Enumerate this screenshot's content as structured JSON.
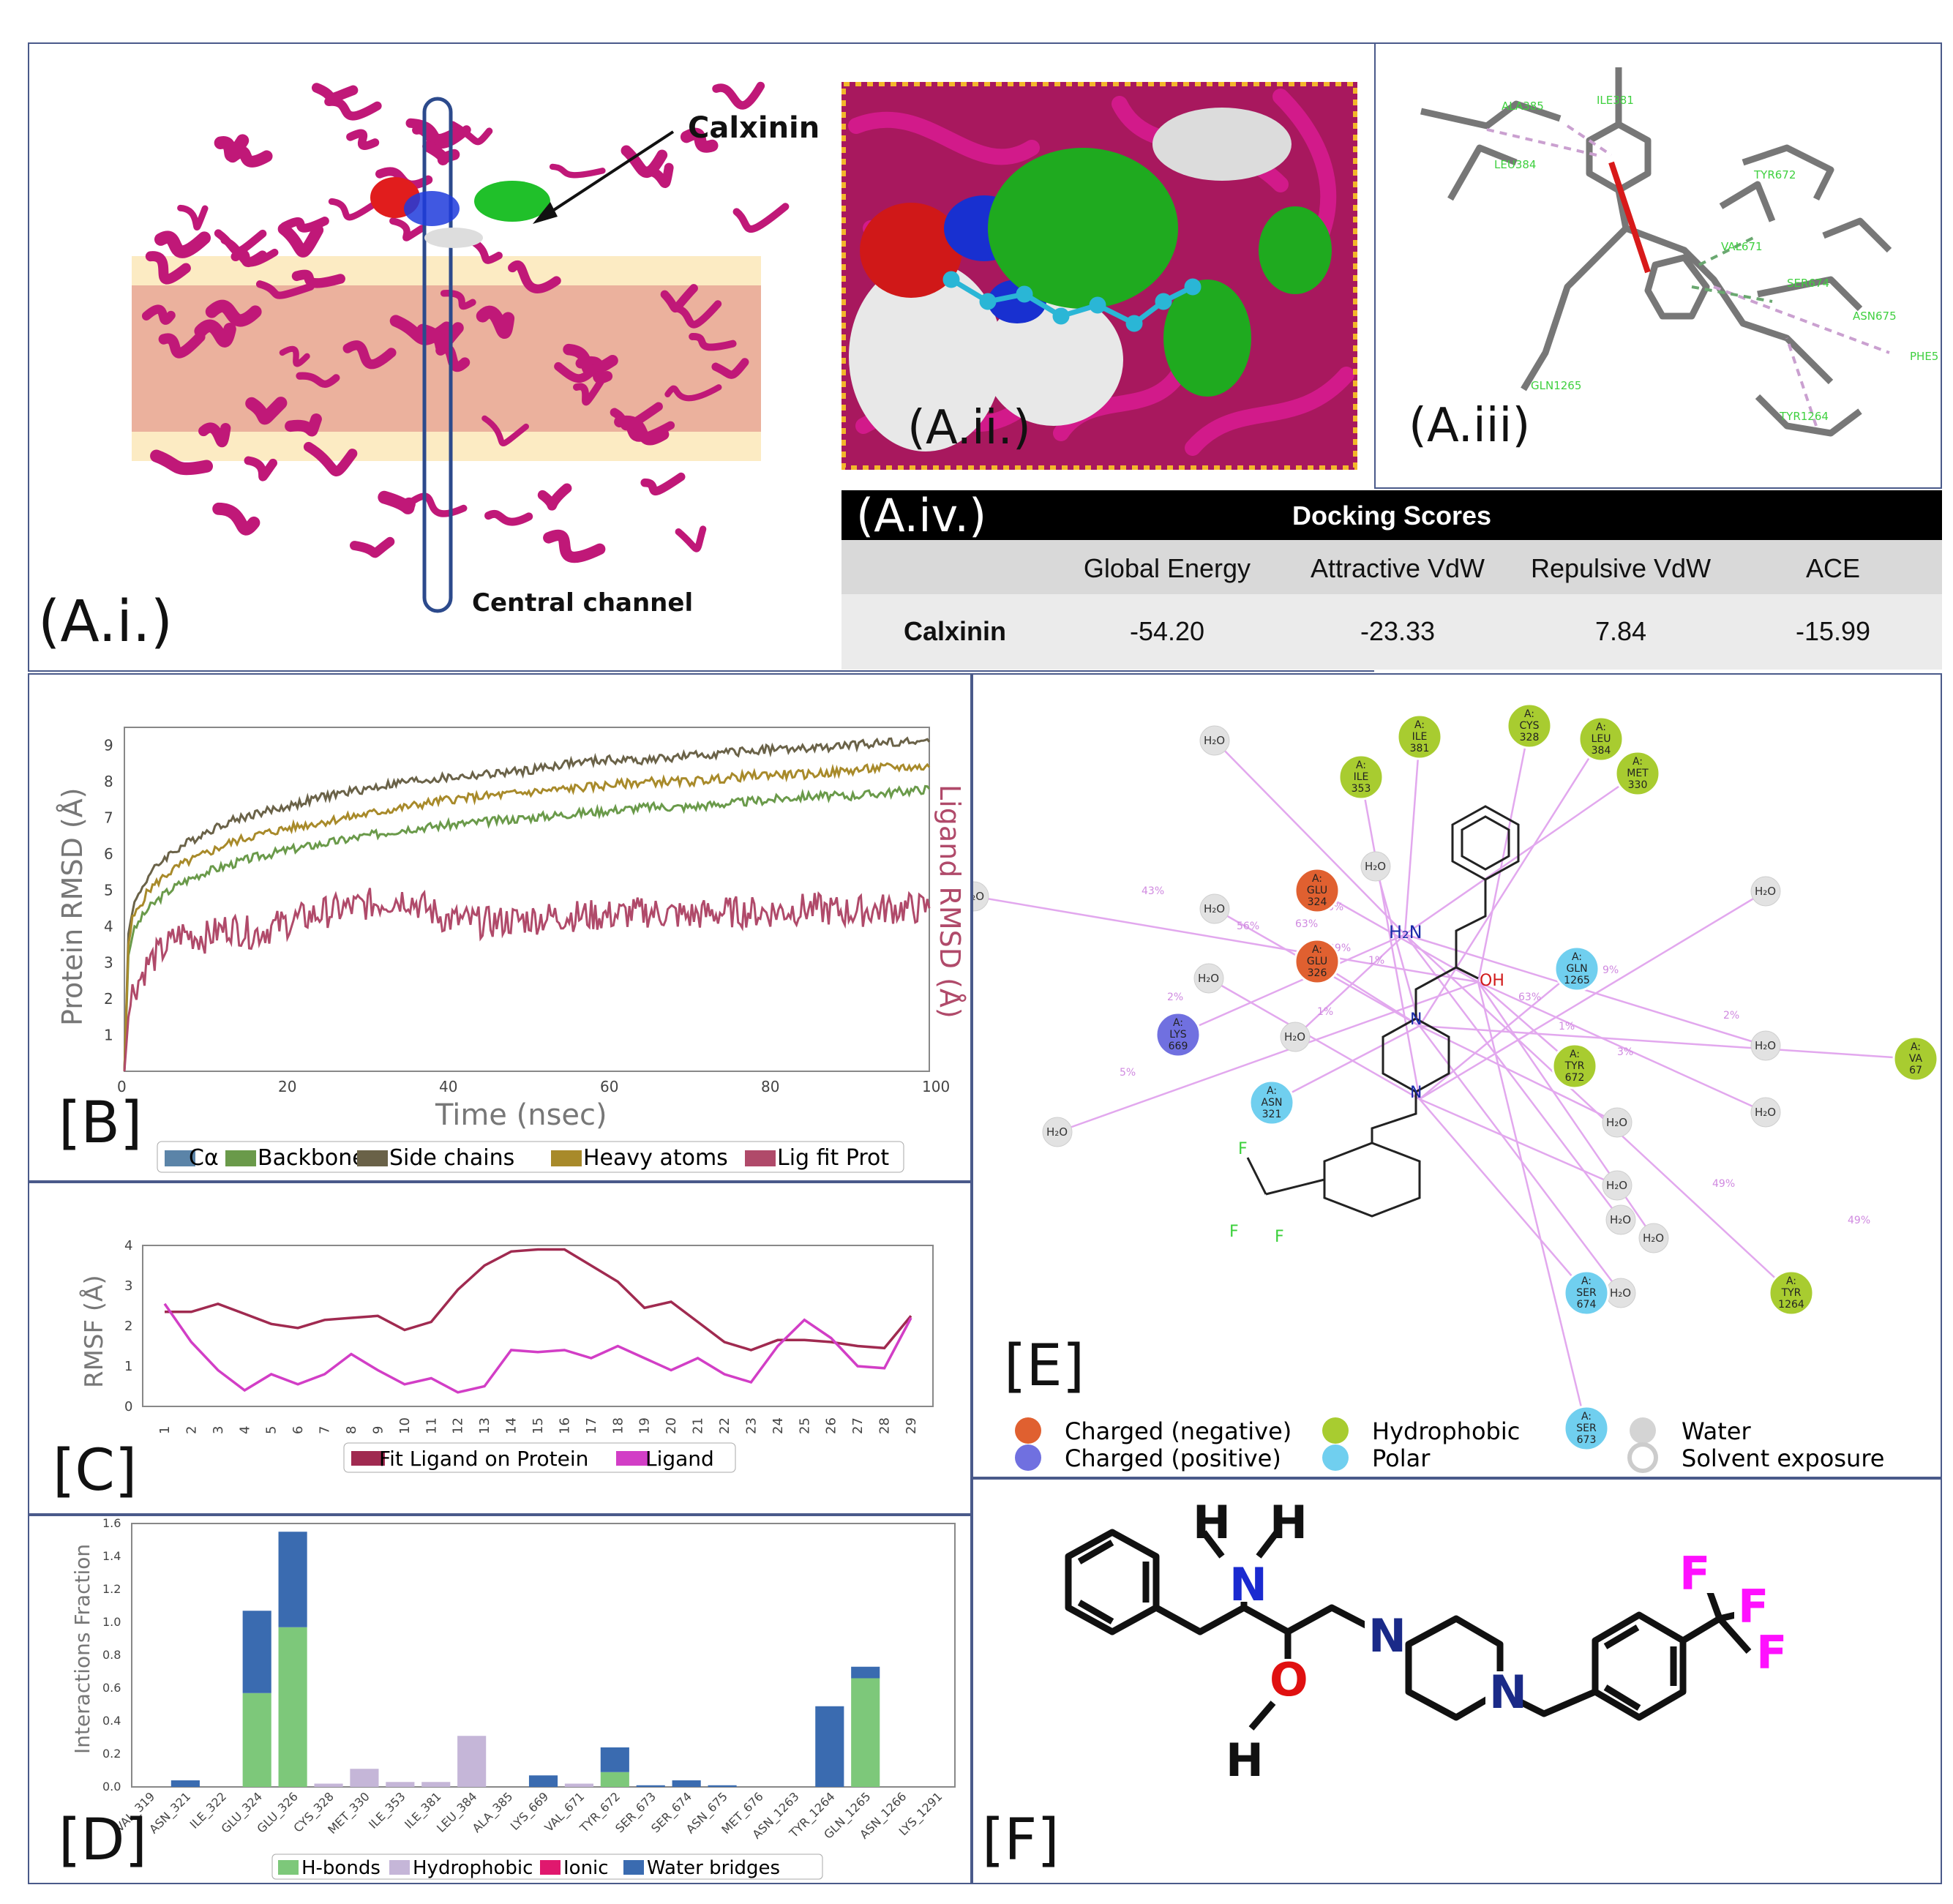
{
  "panel_a": {
    "label_i": "(A.i.)",
    "label_ii": "(A.ii.)",
    "label_iii": "(A.iii)",
    "label_iv": "(A.iv.)",
    "calxinin_label": "Calxinin",
    "channel_label": "Central channel",
    "residues_iii": [
      "ALA385",
      "ILE381",
      "LEU384",
      "TYR672",
      "VAL671",
      "SER674",
      "ASN675",
      "PHE5",
      "GLN1265",
      "TYR1264"
    ]
  },
  "docking": {
    "title": "Docking Scores",
    "headers": [
      "Global Energy",
      "Attractive VdW",
      "Repulsive VdW",
      "ACE"
    ],
    "row_name": "Calxinin",
    "values": [
      "-54.20",
      "-23.33",
      "7.84",
      "-15.99"
    ]
  },
  "panel_b": {
    "label": "[B]",
    "ylabel": "Protein RMSD (Å)",
    "y2label": "Ligand RMSD (Å)",
    "xlabel": "Time (nsec)",
    "legend": [
      "Cα",
      "Backbone",
      "Side chains",
      "Heavy atoms",
      "Lig fit Prot"
    ],
    "colors": {
      "ca": "#5b84a8",
      "backbone": "#6a9a4a",
      "side": "#6a6248",
      "heavy": "#a88a2a",
      "lig": "#b04a6a"
    }
  },
  "panel_c": {
    "label": "[C]",
    "ylabel": "RMSF (Å)",
    "legend": [
      "Fit Ligand on Protein",
      "Ligand"
    ]
  },
  "panel_d": {
    "label": "[D]",
    "ylabel": "Interactions Fraction",
    "legend": [
      "H-bonds",
      "Hydrophobic",
      "Ionic",
      "Water bridges"
    ]
  },
  "panel_e": {
    "label": "[E]",
    "legend": [
      "Charged (negative)",
      "Charged (positive)",
      "Hydrophobic",
      "Polar",
      "Water",
      "Solvent exposure"
    ],
    "h2o": "H₂O",
    "residues": [
      {
        "chain": "A:",
        "name": "ILE",
        "num": "381"
      },
      {
        "chain": "A:",
        "name": "CYS",
        "num": "328"
      },
      {
        "chain": "A:",
        "name": "LEU",
        "num": "384"
      },
      {
        "chain": "A:",
        "name": "ILE",
        "num": "353"
      },
      {
        "chain": "A:",
        "name": "MET",
        "num": "330"
      },
      {
        "chain": "A:",
        "name": "GLU",
        "num": "324"
      },
      {
        "chain": "A:",
        "name": "GLU",
        "num": "326"
      },
      {
        "chain": "A:",
        "name": "GLN",
        "num": "1265"
      },
      {
        "chain": "A:",
        "name": "LYS",
        "num": "669"
      },
      {
        "chain": "A:",
        "name": "TYR",
        "num": "672"
      },
      {
        "chain": "A:",
        "name": "ASN",
        "num": "321"
      },
      {
        "chain": "A:",
        "name": "SER",
        "num": "674"
      },
      {
        "chain": "A:",
        "name": "TYR",
        "num": "1264"
      },
      {
        "chain": "A:",
        "name": "SER",
        "num": "673"
      },
      {
        "chain": "A:",
        "name": "VA",
        "num": "67"
      }
    ],
    "percents": [
      "43%",
      "56%",
      "63%",
      "29%",
      "56%",
      "2%",
      "1%",
      "63%",
      "9%",
      "2%",
      "5%",
      "49%",
      "49%",
      "1%",
      "3%",
      "1%"
    ]
  },
  "panel_f": {
    "label": "[F]",
    "atoms": {
      "H": "H",
      "N": "N",
      "O": "O",
      "F": "F"
    }
  },
  "chart_data": [
    {
      "type": "line",
      "title": "",
      "xlabel": "Time (nsec)",
      "ylabel": "Protein RMSD (Å)",
      "y2label": "Ligand RMSD (Å)",
      "xlim": [
        0,
        100
      ],
      "ylim": [
        0,
        9.5
      ],
      "xticks": [
        0,
        20,
        40,
        60,
        80,
        100
      ],
      "yticks": [
        1,
        2,
        3,
        4,
        5,
        6,
        7,
        8,
        9
      ],
      "x": [
        0,
        0.5,
        1,
        2,
        3,
        5,
        7,
        10,
        13,
        16,
        20,
        25,
        30,
        35,
        40,
        45,
        50,
        55,
        60,
        65,
        70,
        75,
        80,
        85,
        90,
        95,
        100
      ],
      "series": [
        {
          "name": "Backbone",
          "values": [
            0,
            3.2,
            3.8,
            4.2,
            4.5,
            4.9,
            5.2,
            5.5,
            5.7,
            5.9,
            6.1,
            6.3,
            6.5,
            6.7,
            6.8,
            6.9,
            7.0,
            7.1,
            7.2,
            7.3,
            7.3,
            7.4,
            7.5,
            7.6,
            7.6,
            7.7,
            7.8
          ]
        },
        {
          "name": "Side chains",
          "values": [
            0,
            3.8,
            4.5,
            5.0,
            5.4,
            5.9,
            6.2,
            6.6,
            6.9,
            7.1,
            7.3,
            7.6,
            7.8,
            8.0,
            8.1,
            8.2,
            8.3,
            8.5,
            8.6,
            8.6,
            8.7,
            8.8,
            8.9,
            8.9,
            9.0,
            9.1,
            9.1
          ]
        },
        {
          "name": "Heavy atoms",
          "values": [
            0,
            3.5,
            4.2,
            4.6,
            5.0,
            5.4,
            5.7,
            6.0,
            6.3,
            6.5,
            6.7,
            6.9,
            7.1,
            7.3,
            7.5,
            7.6,
            7.7,
            7.8,
            7.9,
            8.0,
            8.0,
            8.1,
            8.2,
            8.2,
            8.3,
            8.4,
            8.4
          ]
        },
        {
          "name": "Lig fit Prot",
          "values": [
            0,
            1.5,
            2.2,
            2.6,
            3.0,
            3.4,
            3.8,
            3.7,
            4.0,
            3.8,
            4.1,
            4.4,
            4.6,
            4.8,
            4.2,
            4.1,
            4.2,
            4.3,
            4.3,
            4.4,
            4.3,
            4.4,
            4.4,
            4.5,
            4.4,
            4.5,
            4.5
          ]
        }
      ]
    },
    {
      "type": "line",
      "title": "",
      "xlabel": "",
      "ylabel": "RMSF (Å)",
      "ylim": [
        0,
        4
      ],
      "yticks": [
        0,
        1,
        2,
        3,
        4
      ],
      "categories": [
        "1",
        "2",
        "3",
        "4",
        "5",
        "6",
        "7",
        "8",
        "9",
        "10",
        "11",
        "12",
        "13",
        "14",
        "15",
        "16",
        "17",
        "18",
        "19",
        "20",
        "21",
        "22",
        "23",
        "24",
        "25",
        "26",
        "27",
        "28",
        "29"
      ],
      "series": [
        {
          "name": "Fit Ligand on Protein",
          "values": [
            2.35,
            2.35,
            2.55,
            2.3,
            2.05,
            1.95,
            2.15,
            2.2,
            2.25,
            1.9,
            2.1,
            2.9,
            3.5,
            3.85,
            3.9,
            3.9,
            3.5,
            3.1,
            2.45,
            2.6,
            2.1,
            1.6,
            1.4,
            1.65,
            1.65,
            1.6,
            1.5,
            1.45,
            2.25
          ]
        },
        {
          "name": "Ligand",
          "values": [
            2.55,
            1.6,
            0.9,
            0.4,
            0.8,
            0.55,
            0.8,
            1.3,
            0.9,
            0.55,
            0.7,
            0.35,
            0.5,
            1.4,
            1.35,
            1.4,
            1.2,
            1.5,
            1.2,
            0.9,
            1.2,
            0.8,
            0.6,
            1.5,
            2.15,
            1.7,
            1.0,
            0.95,
            2.2
          ]
        }
      ]
    },
    {
      "type": "bar",
      "title": "",
      "xlabel": "",
      "ylabel": "Interactions Fraction",
      "ylim": [
        0,
        1.6
      ],
      "yticks": [
        0.0,
        0.2,
        0.4,
        0.6,
        0.8,
        1.0,
        1.2,
        1.4,
        1.6
      ],
      "categories": [
        "VAL_319",
        "ASN_321",
        "ILE_322",
        "GLU_324",
        "GLU_326",
        "CYS_328",
        "MET_330",
        "ILE_353",
        "ILE_381",
        "LEU_384",
        "ALA_385",
        "LYS_669",
        "VAL_671",
        "TYR_672",
        "SER_673",
        "SER_674",
        "ASN_675",
        "MET_676",
        "ASN_1263",
        "TYR_1264",
        "GLN_1265",
        "ASN_1266",
        "LYS_1291"
      ],
      "series": [
        {
          "name": "H-bonds",
          "color": "#7dc87a",
          "values": [
            0,
            0,
            0,
            0.57,
            0.97,
            0,
            0,
            0,
            0,
            0,
            0,
            0,
            0,
            0.09,
            0,
            0,
            0,
            0,
            0,
            0,
            0.66,
            0,
            0
          ]
        },
        {
          "name": "Hydrophobic",
          "color": "#c5b6d8",
          "values": [
            0,
            0,
            0,
            0,
            0,
            0.02,
            0.11,
            0.03,
            0.03,
            0.31,
            0,
            0,
            0.02,
            0,
            0,
            0,
            0,
            0,
            0,
            0,
            0,
            0,
            0
          ]
        },
        {
          "name": "Ionic",
          "color": "#e0186e",
          "values": [
            0,
            0,
            0,
            0,
            0,
            0,
            0,
            0,
            0,
            0,
            0,
            0,
            0,
            0,
            0,
            0,
            0,
            0,
            0,
            0,
            0,
            0,
            0
          ]
        },
        {
          "name": "Water bridges",
          "color": "#3a6bb0",
          "values": [
            0,
            0.04,
            0,
            0.5,
            0.58,
            0,
            0,
            0,
            0,
            0,
            0,
            0.07,
            0,
            0.15,
            0.01,
            0.04,
            0.01,
            0,
            0,
            0.49,
            0.07,
            0,
            0
          ]
        }
      ]
    }
  ]
}
